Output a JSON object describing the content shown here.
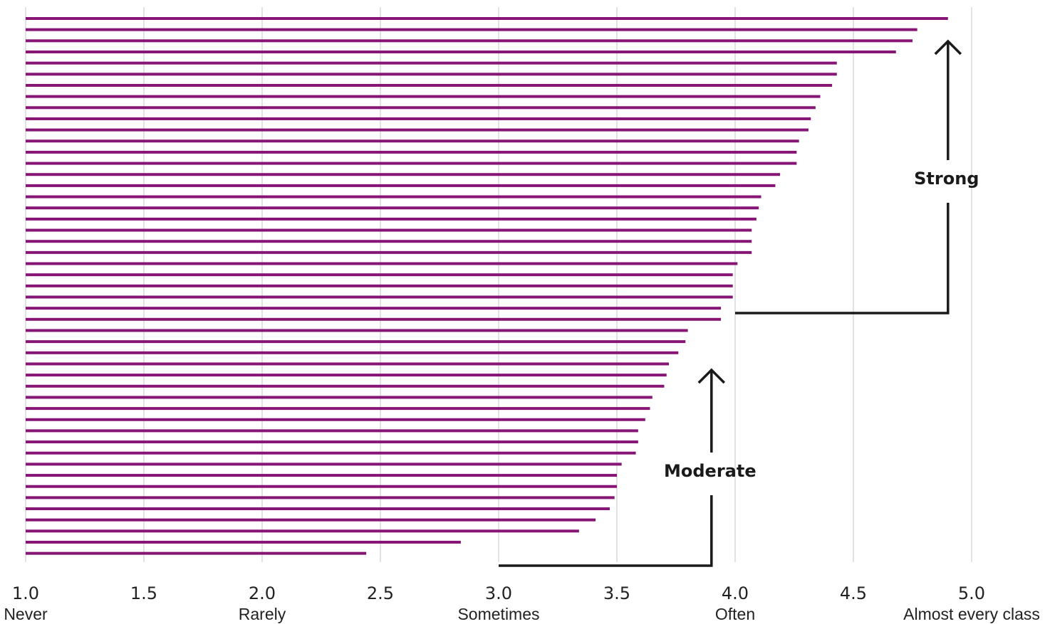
{
  "chart_data": {
    "type": "bar",
    "orientation": "horizontal",
    "sorted": "descending",
    "xlim": [
      1.0,
      5.0
    ],
    "x_ticks": [
      1.0,
      1.5,
      2.0,
      2.5,
      3.0,
      3.5,
      4.0,
      4.5,
      5.0
    ],
    "x_tick_labels": [
      "1.0",
      "1.5",
      "2.0",
      "2.5",
      "3.0",
      "3.5",
      "4.0",
      "4.5",
      "5.0"
    ],
    "x_tick_descriptors": [
      {
        "at": 1.0,
        "label": "Never"
      },
      {
        "at": 2.0,
        "label": "Rarely"
      },
      {
        "at": 3.0,
        "label": "Sometimes"
      },
      {
        "at": 4.0,
        "label": "Often"
      },
      {
        "at": 5.0,
        "label": "Almost every class"
      }
    ],
    "grid": "vertical lines at each tick",
    "bar_color": "#861576",
    "values": [
      4.9,
      4.77,
      4.75,
      4.68,
      4.43,
      4.43,
      4.41,
      4.36,
      4.34,
      4.32,
      4.31,
      4.27,
      4.26,
      4.26,
      4.19,
      4.17,
      4.11,
      4.1,
      4.09,
      4.07,
      4.07,
      4.07,
      4.01,
      3.99,
      3.99,
      3.99,
      3.94,
      3.94,
      3.8,
      3.79,
      3.76,
      3.72,
      3.71,
      3.7,
      3.65,
      3.64,
      3.62,
      3.59,
      3.59,
      3.58,
      3.52,
      3.5,
      3.5,
      3.49,
      3.47,
      3.41,
      3.34,
      2.84,
      2.44
    ],
    "annotations": [
      {
        "label": "Strong",
        "x_from": 4.0,
        "x_to": 4.9,
        "direction": "up"
      },
      {
        "label": "Moderate",
        "x_from": 3.0,
        "x_to": 3.9,
        "direction": "up"
      }
    ]
  }
}
